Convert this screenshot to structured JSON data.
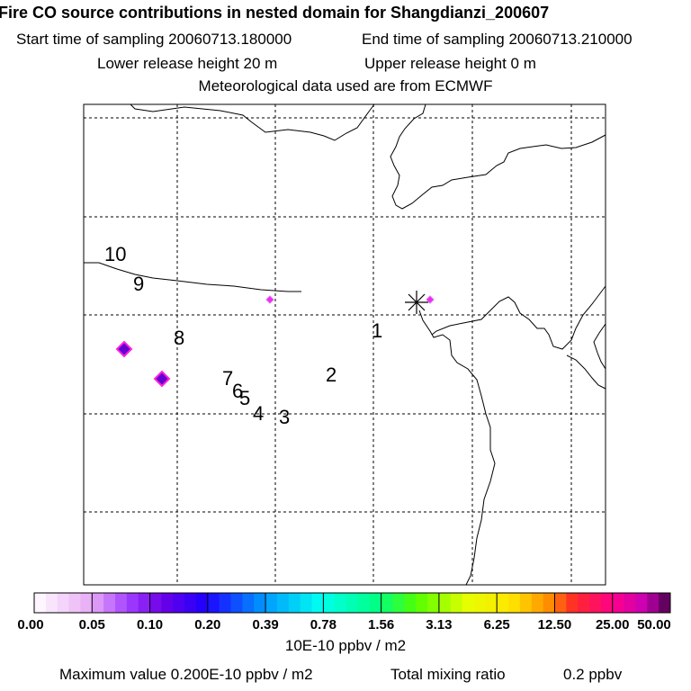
{
  "chart_data": {
    "type": "heatmap",
    "title": "Fire CO source contributions in nested domain for Shangdianzi_200607",
    "start_label": "Start time of sampling 20060713.180000",
    "end_label": "End time of sampling 20060713.210000",
    "lower_label": "Lower release height   20 m",
    "upper_label": "Upper release height    0 m",
    "met_label": "Meteorological data used are from ECMWF",
    "colorbar_ticks": [
      "0.00",
      "0.05",
      "0.10",
      "0.20",
      "0.39",
      "0.78",
      "1.56",
      "3.13",
      "6.25",
      "12.50",
      "25.00",
      "50.00"
    ],
    "colorbar_unit": "10E-10 ppbv / m2",
    "max_label": "Maximum value  0.200E-10 ppbv / m2",
    "total_label": "Total mixing ratio",
    "total_value": "0.2 ppbv",
    "contour_labels": [
      "10",
      "9",
      "8",
      "7",
      "6",
      "5",
      "4",
      "3",
      "2",
      "1"
    ],
    "grid_lines": {
      "vertical": 5,
      "horizontal": 5
    }
  }
}
